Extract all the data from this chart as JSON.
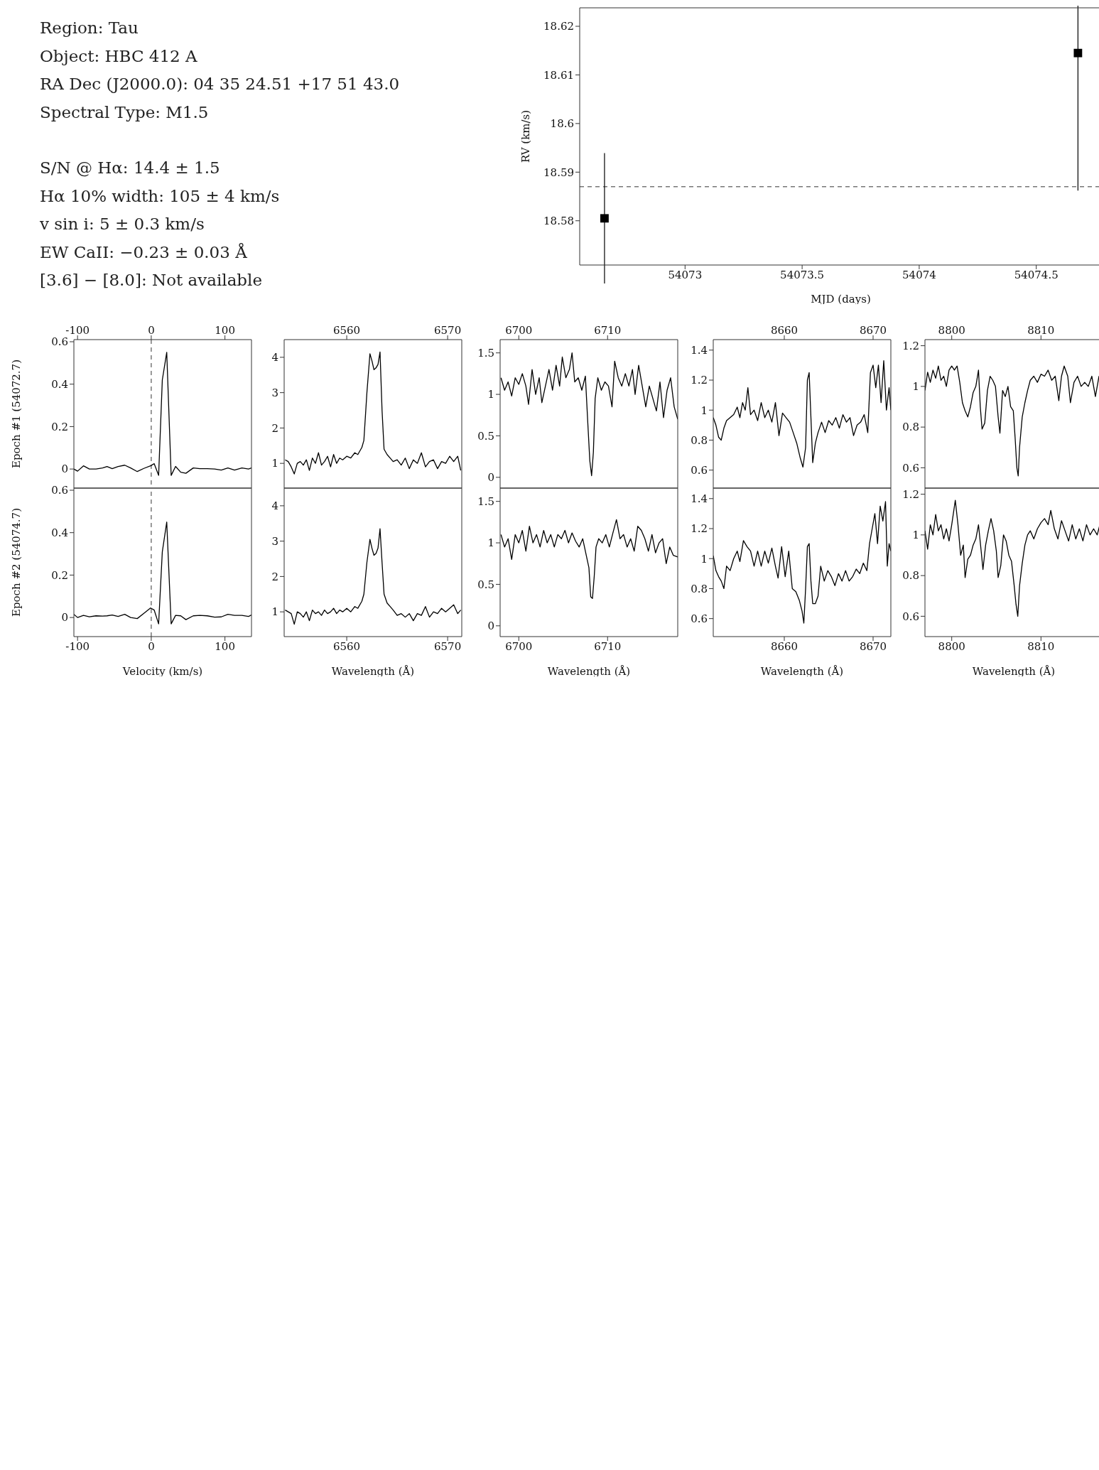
{
  "chart_data": [
    {
      "type": "other",
      "annotations": [
        "Region: Tau",
        "Object: HBC 412 A",
        "RA Dec (J2000.0): 04 35 24.51 +17 51 43.0",
        "Spectral Type: M1.5",
        "S/N @ Hα: 14.4 ± 1.5",
        "Hα 10% width: 105 ± 4 km/s",
        "v sin i: 5 ± 0.3 km/s",
        "EW CaII: −0.23 ± 0.03 Å",
        "[3.6] − [8.0]: Not available"
      ]
    },
    {
      "type": "scatter",
      "xlabel": "MJD (days)",
      "ylabel": "RV (km/s)",
      "marker": "square",
      "color": "#000000",
      "x": [
        54072.656,
        54074.678
      ],
      "values": [
        18.5805,
        18.6145
      ],
      "errors": [
        0.0134,
        0.0283
      ],
      "xlim": [
        54072.55,
        54074.78
      ],
      "xticks": [
        54073,
        54073.5,
        54074,
        54074.5
      ],
      "ylim": [
        18.5709,
        18.6238
      ],
      "yticks": [
        18.58,
        18.59,
        18.6,
        18.61,
        18.62
      ],
      "ref_lines": [
        {
          "axis": "y",
          "value": 18.587,
          "line_style": "dashed"
        }
      ]
    },
    {
      "type": "line",
      "ylabel": "Epoch #1 (54072.7)",
      "color": "#000000",
      "x": [
        -105,
        -100,
        -92,
        -84,
        -75,
        -66,
        -60,
        -53,
        -45,
        -36,
        -28,
        -19,
        -10,
        -1,
        4,
        10,
        15,
        21,
        27,
        33,
        40,
        47,
        57,
        66,
        76,
        86,
        95,
        104,
        113,
        123,
        132,
        136
      ],
      "values": [
        0,
        -0.01,
        0.015,
        0,
        0,
        0.005,
        0.012,
        0.002,
        0.012,
        0.018,
        0.005,
        -0.012,
        0.003,
        0.015,
        0.025,
        -0.03,
        0.42,
        0.55,
        -0.03,
        0.012,
        -0.015,
        -0.02,
        0.005,
        0.002,
        0.002,
        0,
        -0.005,
        0.005,
        -0.005,
        0.005,
        0,
        0.005
      ],
      "xlim": [
        -105,
        136
      ],
      "xticks": [
        -100,
        0,
        100
      ],
      "ylim": [
        -0.09,
        0.61
      ],
      "yticks": [
        0,
        0.2,
        0.4,
        0.6
      ],
      "ref_lines": [
        {
          "axis": "x",
          "value": 0,
          "line_style": "dashed"
        }
      ]
    },
    {
      "type": "line",
      "color": "#000000",
      "x": [
        6553.9,
        6554.2,
        6554.5,
        6554.8,
        6555.1,
        6555.4,
        6555.7,
        6556.0,
        6556.3,
        6556.6,
        6556.9,
        6557.2,
        6557.5,
        6557.8,
        6558.1,
        6558.4,
        6558.7,
        6559.0,
        6559.3,
        6559.6,
        6560.0,
        6560.4,
        6560.8,
        6561.1,
        6561.5,
        6561.7,
        6562.0,
        6562.3,
        6562.5,
        6562.7,
        6562.9,
        6563.1,
        6563.3,
        6563.5,
        6563.7,
        6564.0,
        6564.3,
        6564.6,
        6565.0,
        6565.4,
        6565.8,
        6566.2,
        6566.6,
        6567.0,
        6567.4,
        6567.8,
        6568.2,
        6568.6,
        6569.0,
        6569.4,
        6569.8,
        6570.2,
        6570.6,
        6571.0,
        6571.3
      ],
      "values": [
        1.1,
        1.05,
        0.9,
        0.7,
        1.0,
        1.05,
        0.95,
        1.1,
        0.8,
        1.15,
        1.0,
        1.3,
        0.95,
        1.05,
        1.2,
        0.9,
        1.25,
        1.0,
        1.15,
        1.1,
        1.2,
        1.15,
        1.3,
        1.25,
        1.45,
        1.65,
        3.0,
        4.1,
        3.9,
        3.65,
        3.7,
        3.8,
        4.15,
        2.5,
        1.4,
        1.25,
        1.15,
        1.05,
        1.1,
        0.95,
        1.15,
        0.85,
        1.1,
        1.0,
        1.3,
        0.9,
        1.05,
        1.1,
        0.85,
        1.05,
        1.0,
        1.2,
        1.05,
        1.2,
        0.8
      ],
      "xlim": [
        6553.8,
        6571.4
      ],
      "xticks": [
        6560,
        6570
      ],
      "ylim": [
        0.3,
        4.5
      ],
      "yticks": [
        1,
        2,
        3,
        4
      ]
    },
    {
      "type": "line",
      "color": "#000000",
      "x": [
        6698.0,
        6698.4,
        6698.8,
        6699.2,
        6699.6,
        6700.0,
        6700.4,
        6700.8,
        6701.1,
        6701.5,
        6701.9,
        6702.3,
        6702.6,
        6703.0,
        6703.4,
        6703.8,
        6704.2,
        6704.6,
        6704.9,
        6705.3,
        6705.7,
        6706.0,
        6706.3,
        6706.7,
        6707.1,
        6707.5,
        6707.8,
        6708.0,
        6708.2,
        6708.4,
        6708.6,
        6708.9,
        6709.3,
        6709.7,
        6710.1,
        6710.5,
        6710.8,
        6711.2,
        6711.6,
        6712.0,
        6712.4,
        6712.8,
        6713.1,
        6713.5,
        6713.9,
        6714.3,
        6714.7,
        6715.1,
        6715.5,
        6715.9,
        6716.3,
        6716.7,
        6717.1,
        6717.5,
        6717.9
      ],
      "values": [
        1.2,
        1.05,
        1.15,
        0.98,
        1.2,
        1.12,
        1.25,
        1.1,
        0.88,
        1.3,
        1.0,
        1.2,
        0.9,
        1.1,
        1.3,
        1.05,
        1.35,
        1.1,
        1.45,
        1.2,
        1.3,
        1.5,
        1.15,
        1.2,
        1.05,
        1.22,
        0.6,
        0.2,
        0.02,
        0.3,
        0.95,
        1.2,
        1.05,
        1.15,
        1.1,
        0.85,
        1.4,
        1.2,
        1.1,
        1.25,
        1.1,
        1.3,
        1.0,
        1.35,
        1.1,
        0.85,
        1.1,
        0.95,
        0.8,
        1.15,
        0.72,
        1.05,
        1.2,
        0.85,
        0.7
      ],
      "xlim": [
        6697.9,
        6717.9
      ],
      "xticks": [
        6700,
        6710
      ],
      "ylim": [
        -0.13,
        1.66
      ],
      "yticks": [
        0,
        0.5,
        1,
        1.5
      ]
    },
    {
      "type": "line",
      "color": "#000000",
      "x": [
        8652.0,
        8652.3,
        8652.6,
        8652.9,
        8653.2,
        8653.5,
        8653.9,
        8654.3,
        8654.7,
        8655.0,
        8655.3,
        8655.6,
        8655.9,
        8656.2,
        8656.6,
        8657.0,
        8657.4,
        8657.8,
        8658.2,
        8658.6,
        8659.0,
        8659.4,
        8659.8,
        8660.2,
        8660.6,
        8661.0,
        8661.4,
        8661.8,
        8662.1,
        8662.4,
        8662.6,
        8662.8,
        8663.0,
        8663.2,
        8663.5,
        8663.8,
        8664.2,
        8664.6,
        8665.0,
        8665.4,
        8665.8,
        8666.2,
        8666.6,
        8667.0,
        8667.4,
        8667.8,
        8668.2,
        8668.6,
        8669.0,
        8669.4,
        8669.7,
        8670.0,
        8670.3,
        8670.6,
        8670.9,
        8671.2,
        8671.5,
        8671.8,
        8672.0
      ],
      "values": [
        0.95,
        0.9,
        0.82,
        0.8,
        0.88,
        0.93,
        0.95,
        0.97,
        1.02,
        0.95,
        1.05,
        1.0,
        1.15,
        0.97,
        1.0,
        0.93,
        1.05,
        0.95,
        1.0,
        0.92,
        1.05,
        0.83,
        0.98,
        0.95,
        0.92,
        0.85,
        0.78,
        0.68,
        0.62,
        0.75,
        1.2,
        1.25,
        0.95,
        0.65,
        0.78,
        0.85,
        0.92,
        0.85,
        0.93,
        0.9,
        0.95,
        0.88,
        0.97,
        0.92,
        0.95,
        0.83,
        0.9,
        0.92,
        0.97,
        0.85,
        1.25,
        1.3,
        1.15,
        1.3,
        1.05,
        1.33,
        1.0,
        1.15,
        1.0
      ],
      "xlim": [
        8652.0,
        8672.0
      ],
      "xticks": [
        8660,
        8670
      ],
      "ylim": [
        0.48,
        1.47
      ],
      "yticks": [
        0.6,
        0.8,
        1,
        1.2,
        1.4
      ]
    },
    {
      "type": "line",
      "color": "#000000",
      "x": [
        8797.0,
        8797.3,
        8797.6,
        8797.9,
        8798.2,
        8798.5,
        8798.8,
        8799.1,
        8799.4,
        8799.7,
        8800.0,
        8800.3,
        8800.6,
        8800.9,
        8801.2,
        8801.5,
        8801.8,
        8802.1,
        8802.4,
        8802.7,
        8803.0,
        8803.2,
        8803.4,
        8803.7,
        8804.0,
        8804.3,
        8804.6,
        8804.9,
        8805.2,
        8805.4,
        8805.7,
        8806.0,
        8806.3,
        8806.6,
        8806.9,
        8807.1,
        8807.3,
        8807.45,
        8807.6,
        8807.9,
        8808.2,
        8808.5,
        8808.8,
        8809.2,
        8809.6,
        8810.0,
        8810.4,
        8810.8,
        8811.2,
        8811.6,
        8812.0,
        8812.3,
        8812.6,
        8813.0,
        8813.3,
        8813.7,
        8814.1,
        8814.5,
        8814.9,
        8815.3,
        8815.7,
        8816.1,
        8816.5,
        8816.9
      ],
      "values": [
        0.98,
        1.07,
        1.02,
        1.08,
        1.04,
        1.1,
        1.03,
        1.05,
        1.0,
        1.08,
        1.1,
        1.08,
        1.1,
        1.02,
        0.92,
        0.88,
        0.85,
        0.9,
        0.97,
        1.0,
        1.08,
        0.9,
        0.79,
        0.82,
        0.98,
        1.05,
        1.03,
        1.0,
        0.85,
        0.77,
        0.98,
        0.95,
        1.0,
        0.9,
        0.88,
        0.75,
        0.6,
        0.56,
        0.7,
        0.85,
        0.92,
        0.98,
        1.03,
        1.05,
        1.02,
        1.06,
        1.05,
        1.08,
        1.03,
        1.05,
        0.93,
        1.05,
        1.1,
        1.05,
        0.92,
        1.02,
        1.05,
        1.0,
        1.02,
        1.0,
        1.05,
        0.95,
        1.05,
        1.02
      ],
      "xlim": [
        8797.0,
        8816.9
      ],
      "xticks": [
        8800,
        8810
      ],
      "ylim": [
        0.5,
        1.23
      ],
      "yticks": [
        0.6,
        0.8,
        1,
        1.2
      ]
    },
    {
      "type": "line",
      "ylabel": "Epoch #2 (54074.7)",
      "xlabel": "Velocity (km/s)",
      "color": "#000000",
      "x": [
        -105,
        -100,
        -92,
        -84,
        -75,
        -66,
        -60,
        -53,
        -45,
        -36,
        -28,
        -19,
        -10,
        -1,
        4,
        10,
        15,
        21,
        27,
        33,
        40,
        47,
        57,
        66,
        76,
        86,
        95,
        104,
        113,
        123,
        132,
        136
      ],
      "values": [
        0.015,
        0,
        0.01,
        0.003,
        0.008,
        0.007,
        0.008,
        0.012,
        0.005,
        0.015,
        0,
        -0.005,
        0.02,
        0.045,
        0.035,
        -0.03,
        0.31,
        0.45,
        -0.03,
        0.01,
        0.008,
        -0.01,
        0.008,
        0.01,
        0.008,
        0.002,
        0.003,
        0.015,
        0.01,
        0.01,
        0.005,
        0.012
      ],
      "xlim": [
        -105,
        136
      ],
      "xticks": [
        -100,
        0,
        100
      ],
      "ylim": [
        -0.09,
        0.61
      ],
      "yticks": [
        0,
        0.2,
        0.4,
        0.6
      ],
      "ref_lines": [
        {
          "axis": "x",
          "value": 0,
          "line_style": "dashed"
        }
      ]
    },
    {
      "type": "line",
      "xlabel": "Wavelength (Å)",
      "color": "#000000",
      "x": [
        6553.9,
        6554.2,
        6554.5,
        6554.8,
        6555.1,
        6555.4,
        6555.7,
        6556.0,
        6556.3,
        6556.6,
        6556.9,
        6557.2,
        6557.5,
        6557.8,
        6558.1,
        6558.4,
        6558.7,
        6559.0,
        6559.3,
        6559.6,
        6560.0,
        6560.4,
        6560.8,
        6561.1,
        6561.5,
        6561.7,
        6562.0,
        6562.3,
        6562.5,
        6562.7,
        6562.9,
        6563.1,
        6563.3,
        6563.5,
        6563.7,
        6564.0,
        6564.3,
        6564.6,
        6565.0,
        6565.4,
        6565.8,
        6566.2,
        6566.6,
        6567.0,
        6567.4,
        6567.8,
        6568.2,
        6568.6,
        6569.0,
        6569.4,
        6569.8,
        6570.2,
        6570.6,
        6571.0,
        6571.3
      ],
      "values": [
        1.05,
        1.0,
        0.95,
        0.65,
        1.0,
        0.95,
        0.85,
        1.0,
        0.75,
        1.05,
        0.95,
        1.0,
        0.9,
        1.05,
        0.95,
        1.0,
        1.1,
        0.95,
        1.05,
        1.0,
        1.1,
        1.0,
        1.15,
        1.1,
        1.3,
        1.5,
        2.4,
        3.05,
        2.8,
        2.6,
        2.65,
        2.8,
        3.35,
        2.4,
        1.5,
        1.25,
        1.15,
        1.05,
        0.9,
        0.95,
        0.85,
        0.95,
        0.75,
        0.95,
        0.9,
        1.15,
        0.85,
        1.0,
        0.95,
        1.1,
        1.0,
        1.1,
        1.2,
        0.95,
        1.05
      ],
      "xlim": [
        6553.8,
        6571.4
      ],
      "xticks": [
        6560,
        6570
      ],
      "ylim": [
        0.3,
        4.5
      ],
      "yticks": [
        1,
        2,
        3,
        4
      ]
    },
    {
      "type": "line",
      "xlabel": "Wavelength (Å)",
      "color": "#000000",
      "x": [
        6698.0,
        6698.4,
        6698.8,
        6699.2,
        6699.6,
        6700.0,
        6700.4,
        6700.8,
        6701.2,
        6701.6,
        6702.0,
        6702.4,
        6702.8,
        6703.2,
        6703.6,
        6704.0,
        6704.4,
        6704.8,
        6705.2,
        6705.6,
        6706.0,
        6706.4,
        6706.8,
        6707.2,
        6707.6,
        6707.9,
        6708.1,
        6708.3,
        6708.5,
        6708.7,
        6709.0,
        6709.4,
        6709.8,
        6710.2,
        6710.6,
        6711.0,
        6711.4,
        6711.8,
        6712.2,
        6712.6,
        6713.0,
        6713.4,
        6713.8,
        6714.2,
        6714.6,
        6715.0,
        6715.4,
        6715.8,
        6716.2,
        6716.6,
        6717.0,
        6717.4,
        6717.9
      ],
      "values": [
        1.1,
        0.95,
        1.05,
        0.8,
        1.1,
        1.0,
        1.15,
        0.9,
        1.2,
        1.0,
        1.1,
        0.95,
        1.15,
        1.0,
        1.1,
        0.95,
        1.1,
        1.05,
        1.15,
        1.0,
        1.12,
        1.02,
        0.95,
        1.05,
        0.85,
        0.7,
        0.35,
        0.33,
        0.6,
        0.95,
        1.05,
        1.0,
        1.1,
        0.95,
        1.12,
        1.28,
        1.05,
        1.1,
        0.95,
        1.05,
        0.9,
        1.2,
        1.15,
        1.05,
        0.9,
        1.1,
        0.88,
        1.0,
        1.05,
        0.75,
        0.95,
        0.85,
        0.83
      ],
      "xlim": [
        6697.9,
        6717.9
      ],
      "xticks": [
        6700,
        6710
      ],
      "ylim": [
        -0.13,
        1.66
      ],
      "yticks": [
        0,
        0.5,
        1,
        1.5
      ]
    },
    {
      "type": "line",
      "xlabel": "Wavelength (Å)",
      "color": "#000000",
      "x": [
        8652.0,
        8652.3,
        8652.6,
        8652.9,
        8653.2,
        8653.5,
        8653.9,
        8654.3,
        8654.7,
        8655.0,
        8655.4,
        8655.8,
        8656.2,
        8656.6,
        8657.0,
        8657.4,
        8657.8,
        8658.2,
        8658.6,
        8659.0,
        8659.3,
        8659.7,
        8660.1,
        8660.5,
        8660.9,
        8661.3,
        8661.7,
        8662.0,
        8662.2,
        8662.4,
        8662.6,
        8662.8,
        8663.0,
        8663.2,
        8663.5,
        8663.8,
        8664.1,
        8664.5,
        8664.9,
        8665.3,
        8665.7,
        8666.1,
        8666.5,
        8666.9,
        8667.3,
        8667.7,
        8668.1,
        8668.5,
        8668.9,
        8669.3,
        8669.6,
        8669.9,
        8670.2,
        8670.5,
        8670.8,
        8671.1,
        8671.4,
        8671.6,
        8671.8,
        8672.0
      ],
      "values": [
        1.02,
        0.92,
        0.88,
        0.85,
        0.8,
        0.95,
        0.92,
        1.0,
        1.05,
        0.98,
        1.12,
        1.08,
        1.05,
        0.95,
        1.05,
        0.95,
        1.05,
        0.97,
        1.07,
        0.95,
        0.87,
        1.08,
        0.88,
        1.05,
        0.8,
        0.78,
        0.72,
        0.65,
        0.57,
        0.8,
        1.08,
        1.1,
        0.85,
        0.7,
        0.7,
        0.75,
        0.95,
        0.85,
        0.92,
        0.88,
        0.82,
        0.9,
        0.85,
        0.92,
        0.85,
        0.88,
        0.93,
        0.9,
        0.97,
        0.92,
        1.1,
        1.2,
        1.3,
        1.1,
        1.35,
        1.25,
        1.38,
        0.95,
        1.1,
        1.05
      ],
      "xlim": [
        8652.0,
        8672.0
      ],
      "xticks": [
        8660,
        8670
      ],
      "ylim": [
        0.48,
        1.47
      ],
      "yticks": [
        0.6,
        0.8,
        1,
        1.2,
        1.4
      ]
    },
    {
      "type": "line",
      "xlabel": "Wavelength (Å)",
      "color": "#000000",
      "x": [
        8797.0,
        8797.3,
        8797.6,
        8797.9,
        8798.2,
        8798.5,
        8798.8,
        8799.1,
        8799.4,
        8799.7,
        8800.0,
        8800.4,
        8800.7,
        8801.0,
        8801.3,
        8801.5,
        8801.8,
        8802.1,
        8802.4,
        8802.7,
        8803.0,
        8803.3,
        8803.5,
        8803.8,
        8804.1,
        8804.4,
        8804.7,
        8805.0,
        8805.2,
        8805.5,
        8805.8,
        8806.1,
        8806.4,
        8806.7,
        8807.0,
        8807.2,
        8807.4,
        8807.6,
        8807.9,
        8808.2,
        8808.5,
        8808.8,
        8809.2,
        8809.6,
        8810.0,
        8810.4,
        8810.8,
        8811.1,
        8811.5,
        8811.9,
        8812.3,
        8812.7,
        8813.1,
        8813.5,
        8813.9,
        8814.3,
        8814.7,
        8815.1,
        8815.5,
        8815.9,
        8816.3,
        8816.6,
        8816.9
      ],
      "values": [
        1.02,
        0.93,
        1.05,
        1.0,
        1.1,
        1.02,
        1.05,
        0.98,
        1.03,
        0.97,
        1.05,
        1.17,
        1.05,
        0.9,
        0.95,
        0.79,
        0.88,
        0.9,
        0.95,
        0.98,
        1.05,
        0.92,
        0.83,
        0.95,
        1.02,
        1.08,
        1.02,
        0.92,
        0.79,
        0.85,
        1.0,
        0.97,
        0.9,
        0.87,
        0.75,
        0.66,
        0.6,
        0.75,
        0.86,
        0.95,
        1.0,
        1.02,
        0.98,
        1.03,
        1.06,
        1.08,
        1.05,
        1.12,
        1.03,
        0.98,
        1.07,
        1.02,
        0.97,
        1.05,
        0.98,
        1.03,
        0.97,
        1.05,
        1.0,
        1.03,
        1.0,
        1.05,
        1.08
      ],
      "xlim": [
        8797.0,
        8816.9
      ],
      "xticks": [
        8800,
        8810
      ],
      "ylim": [
        0.5,
        1.23
      ],
      "yticks": [
        0.6,
        0.8,
        1,
        1.2
      ]
    }
  ]
}
